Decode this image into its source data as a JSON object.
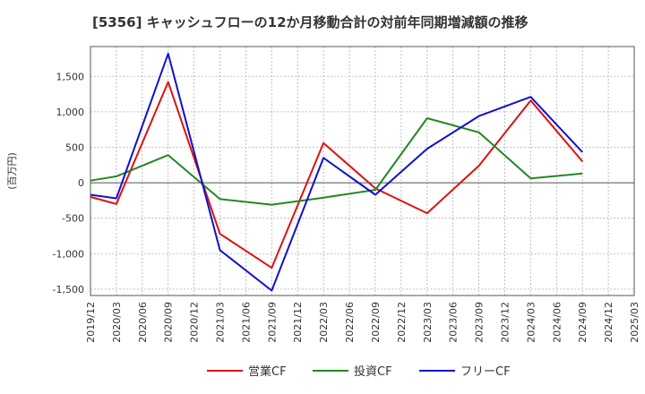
{
  "chart_data": {
    "type": "line",
    "title": "[5356]  キャッシュフローの12か月移動合計の対前年同期増減額の推移",
    "ylabel": "(百万円)",
    "xlabel": "",
    "categories": [
      "2019/12",
      "2020/03",
      "2020/06",
      "2020/09",
      "2020/12",
      "2021/03",
      "2021/06",
      "2021/09",
      "2021/12",
      "2022/03",
      "2022/06",
      "2022/09",
      "2022/12",
      "2023/03",
      "2023/06",
      "2023/09",
      "2023/12",
      "2024/03",
      "2024/06",
      "2024/09",
      "2024/12",
      "2025/03"
    ],
    "yticks": [
      1500,
      1000,
      500,
      0,
      -500,
      -1000,
      -1500
    ],
    "yticklabels": [
      "1,500",
      "1,000",
      "500",
      "0",
      "-500",
      "-1,000",
      "-1,500"
    ],
    "ylim": [
      -1590,
      1920
    ],
    "grid": true,
    "legend_position": "bottom",
    "series": [
      {
        "name": "営業CF",
        "color": "#dd1111",
        "values": [
          -200,
          -300,
          null,
          1420,
          null,
          -720,
          null,
          -1200,
          null,
          560,
          null,
          -80,
          null,
          -430,
          null,
          240,
          null,
          1160,
          null,
          300,
          null,
          null
        ]
      },
      {
        "name": "投資CF",
        "color": "#228822",
        "values": [
          30,
          90,
          null,
          390,
          null,
          -230,
          null,
          -310,
          null,
          -210,
          null,
          -100,
          null,
          910,
          null,
          710,
          null,
          60,
          null,
          130,
          null,
          null
        ]
      },
      {
        "name": "フリーCF",
        "color": "#1111cc",
        "values": [
          -170,
          -220,
          null,
          1820,
          null,
          -950,
          null,
          -1520,
          null,
          350,
          null,
          -170,
          null,
          480,
          null,
          940,
          null,
          1210,
          null,
          430,
          null,
          null
        ]
      }
    ]
  }
}
